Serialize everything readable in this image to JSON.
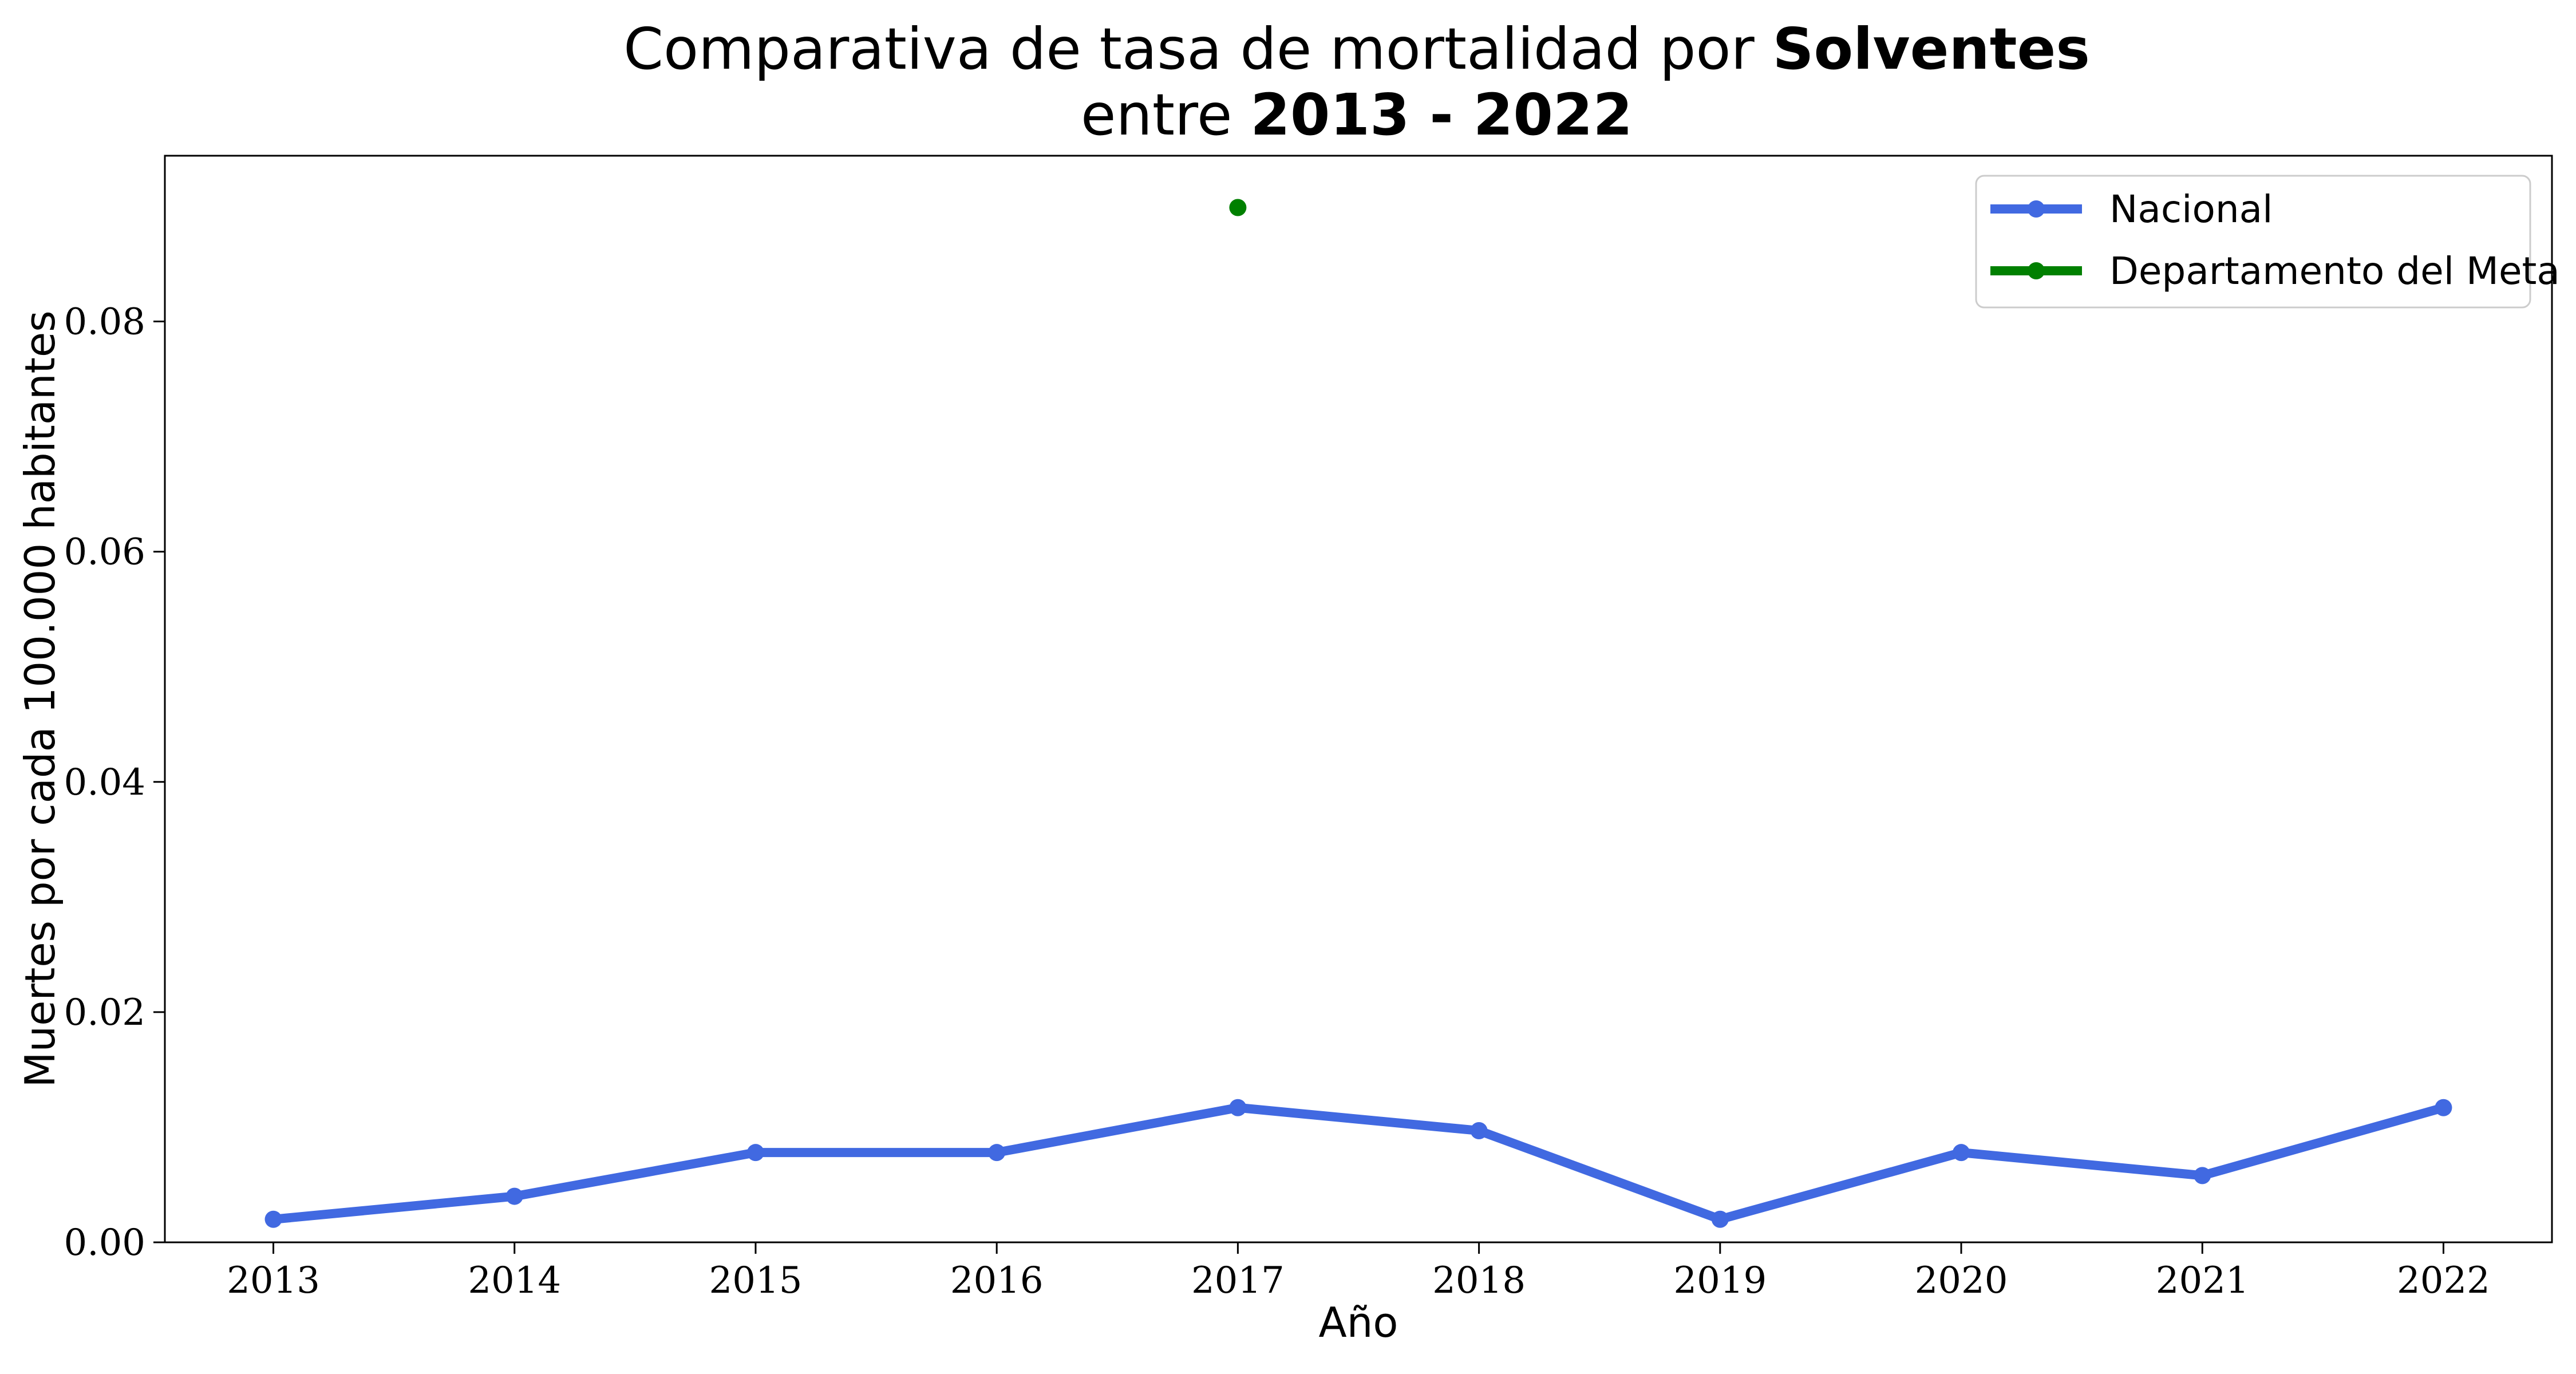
{
  "chart_data": {
    "type": "line",
    "title_parts": {
      "line1_prefix": "Comparativa de tasa de mortalidad por ",
      "line1_bold": "Solventes",
      "line2_prefix": "entre ",
      "line2_bold": "2013 - 2022"
    },
    "xlabel": "Año",
    "ylabel": "Muertes por cada 100.000 habitantes",
    "x": [
      2013,
      2014,
      2015,
      2016,
      2017,
      2018,
      2019,
      2020,
      2021,
      2022
    ],
    "x_tick_labels": [
      "2013",
      "2014",
      "2015",
      "2016",
      "2017",
      "2018",
      "2019",
      "2020",
      "2021",
      "2022"
    ],
    "xlim": [
      2012.55,
      2022.45
    ],
    "ylim": [
      0,
      0.0944
    ],
    "y_ticks": [
      0,
      0.02,
      0.04,
      0.06,
      0.08
    ],
    "y_tick_labels": [
      "0.00",
      "0.02",
      "0.04",
      "0.06",
      "0.08"
    ],
    "grid": false,
    "legend_position": "top-right",
    "series": [
      {
        "name": "Nacional",
        "color": "#4169e1",
        "points": [
          {
            "x": 2013,
            "y": 0.002
          },
          {
            "x": 2014,
            "y": 0.004
          },
          {
            "x": 2015,
            "y": 0.0078
          },
          {
            "x": 2016,
            "y": 0.0078
          },
          {
            "x": 2017,
            "y": 0.0117
          },
          {
            "x": 2018,
            "y": 0.0097
          },
          {
            "x": 2019,
            "y": 0.002
          },
          {
            "x": 2020,
            "y": 0.0078
          },
          {
            "x": 2021,
            "y": 0.0058
          },
          {
            "x": 2022,
            "y": 0.0117
          }
        ]
      },
      {
        "name": "Departamento del Meta",
        "color": "#008000",
        "points": [
          {
            "x": 2017,
            "y": 0.0899
          }
        ]
      }
    ]
  }
}
